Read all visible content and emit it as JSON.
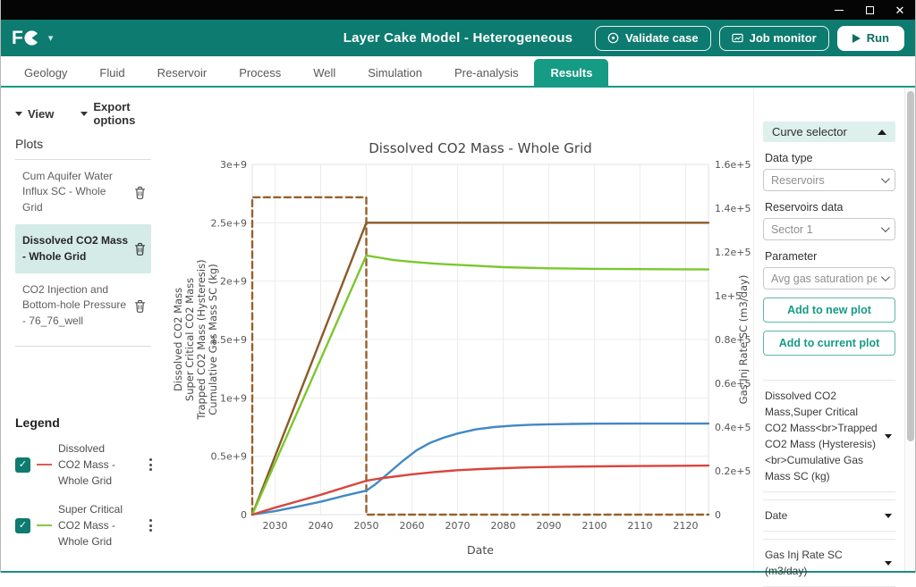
{
  "window": {
    "controls": {
      "minimize": "minimize",
      "maximize": "maximize",
      "close": "close"
    }
  },
  "header": {
    "logo_text": "F",
    "title": "Layer Cake Model - Heterogeneous",
    "validate_label": "Validate case",
    "job_monitor_label": "Job monitor",
    "run_label": "Run"
  },
  "tabs": {
    "items": [
      {
        "label": "Geology"
      },
      {
        "label": "Fluid"
      },
      {
        "label": "Reservoir"
      },
      {
        "label": "Process"
      },
      {
        "label": "Well"
      },
      {
        "label": "Simulation"
      },
      {
        "label": "Pre-analysis"
      },
      {
        "label": "Results",
        "active": true
      }
    ]
  },
  "sidebar": {
    "view_label": "View",
    "export_label": "Export options",
    "plots_title": "Plots",
    "plots": [
      {
        "label": "Cum Aquifer Water Influx SC - Whole Grid",
        "selected": false
      },
      {
        "label": "Dissolved CO2 Mass - Whole Grid",
        "selected": true
      },
      {
        "label": "CO2 Injection and Bottom-hole Pressure - 76_76_well",
        "selected": false
      }
    ],
    "legend": {
      "title": "Legend",
      "items": [
        {
          "label": "Dissolved CO2 Mass - Whole Grid",
          "color": "#dd5a50",
          "checked": true
        },
        {
          "label": "Super Critical CO2 Mass - Whole Grid",
          "color": "#85cc3a",
          "checked": true
        }
      ]
    }
  },
  "curve_selector": {
    "title": "Curve selector",
    "data_type_label": "Data type",
    "data_type_value": "Reservoirs",
    "reservoirs_label": "Reservoirs data",
    "reservoirs_value": "Sector 1",
    "parameter_label": "Parameter",
    "parameter_value": "Avg gas saturation per sector",
    "add_new_label": "Add to new plot",
    "add_current_label": "Add to current plot",
    "sections": [
      {
        "label": "Dissolved CO2 Mass,Super Critical CO2 Mass<br>Trapped CO2 Mass (Hysteresis) <br>Cumulative Gas Mass SC (kg)"
      },
      {
        "label": "Date"
      },
      {
        "label": "Gas Inj Rate SC (m3/day)"
      }
    ]
  },
  "chart_data": {
    "type": "line",
    "title": "Dissolved CO2 Mass - Whole Grid",
    "xlabel": "Date",
    "ylabel_left_lines": [
      "Dissolved CO2 Mass",
      "Super Critical CO2 Mass",
      "Trapped CO2 Mass (Hysteresis)",
      "Cumulative Gas Mass SC (kg)"
    ],
    "ylabel_right": "Gas Inj Rate SC (m3/day)",
    "grid": true,
    "legend_position": "external-left",
    "x_range": [
      2025,
      2125
    ],
    "x_ticks": [
      2030,
      2040,
      2050,
      2060,
      2070,
      2080,
      2090,
      2100,
      2110,
      2120
    ],
    "y_left": {
      "range": [
        0,
        3000000000.0
      ],
      "ticks": [
        {
          "v": 0,
          "label": "0"
        },
        {
          "v": 500000000.0,
          "label": "0.5e+9"
        },
        {
          "v": 1000000000.0,
          "label": "1e+9"
        },
        {
          "v": 1500000000.0,
          "label": "1.5e+9"
        },
        {
          "v": 2000000000.0,
          "label": "2e+9"
        },
        {
          "v": 2500000000.0,
          "label": "2.5e+9"
        },
        {
          "v": 3000000000.0,
          "label": "3e+9"
        }
      ]
    },
    "y_right": {
      "range": [
        0,
        160000.0
      ],
      "ticks": [
        {
          "v": 0,
          "label": "0"
        },
        {
          "v": 20000.0,
          "label": "0.2e+5"
        },
        {
          "v": 40000.0,
          "label": "0.4e+5"
        },
        {
          "v": 60000.0,
          "label": "0.6e+5"
        },
        {
          "v": 80000.0,
          "label": "0.8e+5"
        },
        {
          "v": 100000.0,
          "label": "1e+5"
        },
        {
          "v": 120000.0,
          "label": "1.2e+5"
        },
        {
          "v": 140000.0,
          "label": "1.4e+5"
        },
        {
          "v": 160000.0,
          "label": "1.6e+5"
        }
      ]
    },
    "series": [
      {
        "name": "Gas Inj Rate SC (m3/day)",
        "axis": "right",
        "style": "dashed",
        "color": "#96622e",
        "points": [
          [
            2025,
            0
          ],
          [
            2025,
            145000
          ],
          [
            2050,
            145000
          ],
          [
            2050,
            0
          ],
          [
            2125,
            0
          ]
        ]
      },
      {
        "name": "Cumulative Gas Mass SC (kg)",
        "axis": "left",
        "style": "solid",
        "color": "#8a5a28",
        "points": [
          [
            2025,
            0
          ],
          [
            2050,
            2500000000.0
          ],
          [
            2125,
            2500000000.0
          ]
        ]
      },
      {
        "name": "Super Critical CO2 Mass - Whole Grid",
        "axis": "left",
        "style": "solid",
        "color": "#7cc72e",
        "points": [
          [
            2025,
            0
          ],
          [
            2050,
            2220000000.0
          ],
          [
            2053,
            2200000000.0
          ],
          [
            2056,
            2180000000.0
          ],
          [
            2060,
            2165000000.0
          ],
          [
            2065,
            2150000000.0
          ],
          [
            2070,
            2140000000.0
          ],
          [
            2075,
            2130000000.0
          ],
          [
            2080,
            2120000000.0
          ],
          [
            2090,
            2110000000.0
          ],
          [
            2100,
            2105000000.0
          ],
          [
            2125,
            2100000000.0
          ]
        ]
      },
      {
        "name": "Trapped CO2 Mass (Hysteresis)",
        "axis": "left",
        "style": "solid",
        "color": "#4288c5",
        "points": [
          [
            2025,
            0
          ],
          [
            2030,
            30000000.0
          ],
          [
            2035,
            70000000.0
          ],
          [
            2040,
            110000000.0
          ],
          [
            2045,
            160000000.0
          ],
          [
            2050,
            205000000.0
          ],
          [
            2052,
            260000000.0
          ],
          [
            2055,
            360000000.0
          ],
          [
            2058,
            460000000.0
          ],
          [
            2061,
            550000000.0
          ],
          [
            2064,
            615000000.0
          ],
          [
            2067,
            660000000.0
          ],
          [
            2070,
            695000000.0
          ],
          [
            2074,
            730000000.0
          ],
          [
            2078,
            750000000.0
          ],
          [
            2082,
            762000000.0
          ],
          [
            2086,
            770000000.0
          ],
          [
            2090,
            774000000.0
          ],
          [
            2095,
            777000000.0
          ],
          [
            2100,
            779000000.0
          ],
          [
            2110,
            780000000.0
          ],
          [
            2125,
            780000000.0
          ]
        ]
      },
      {
        "name": "Dissolved CO2 Mass - Whole Grid",
        "axis": "left",
        "style": "solid",
        "color": "#d8453c",
        "points": [
          [
            2025,
            0
          ],
          [
            2030,
            60000000.0
          ],
          [
            2035,
            115000000.0
          ],
          [
            2040,
            170000000.0
          ],
          [
            2045,
            230000000.0
          ],
          [
            2050,
            290000000.0
          ],
          [
            2053,
            310000000.0
          ],
          [
            2056,
            325000000.0
          ],
          [
            2060,
            345000000.0
          ],
          [
            2065,
            365000000.0
          ],
          [
            2070,
            380000000.0
          ],
          [
            2075,
            390000000.0
          ],
          [
            2080,
            398000000.0
          ],
          [
            2085,
            404000000.0
          ],
          [
            2090,
            408000000.0
          ],
          [
            2095,
            411000000.0
          ],
          [
            2100,
            413000000.0
          ],
          [
            2110,
            416000000.0
          ],
          [
            2125,
            420000000.0
          ]
        ]
      }
    ]
  }
}
